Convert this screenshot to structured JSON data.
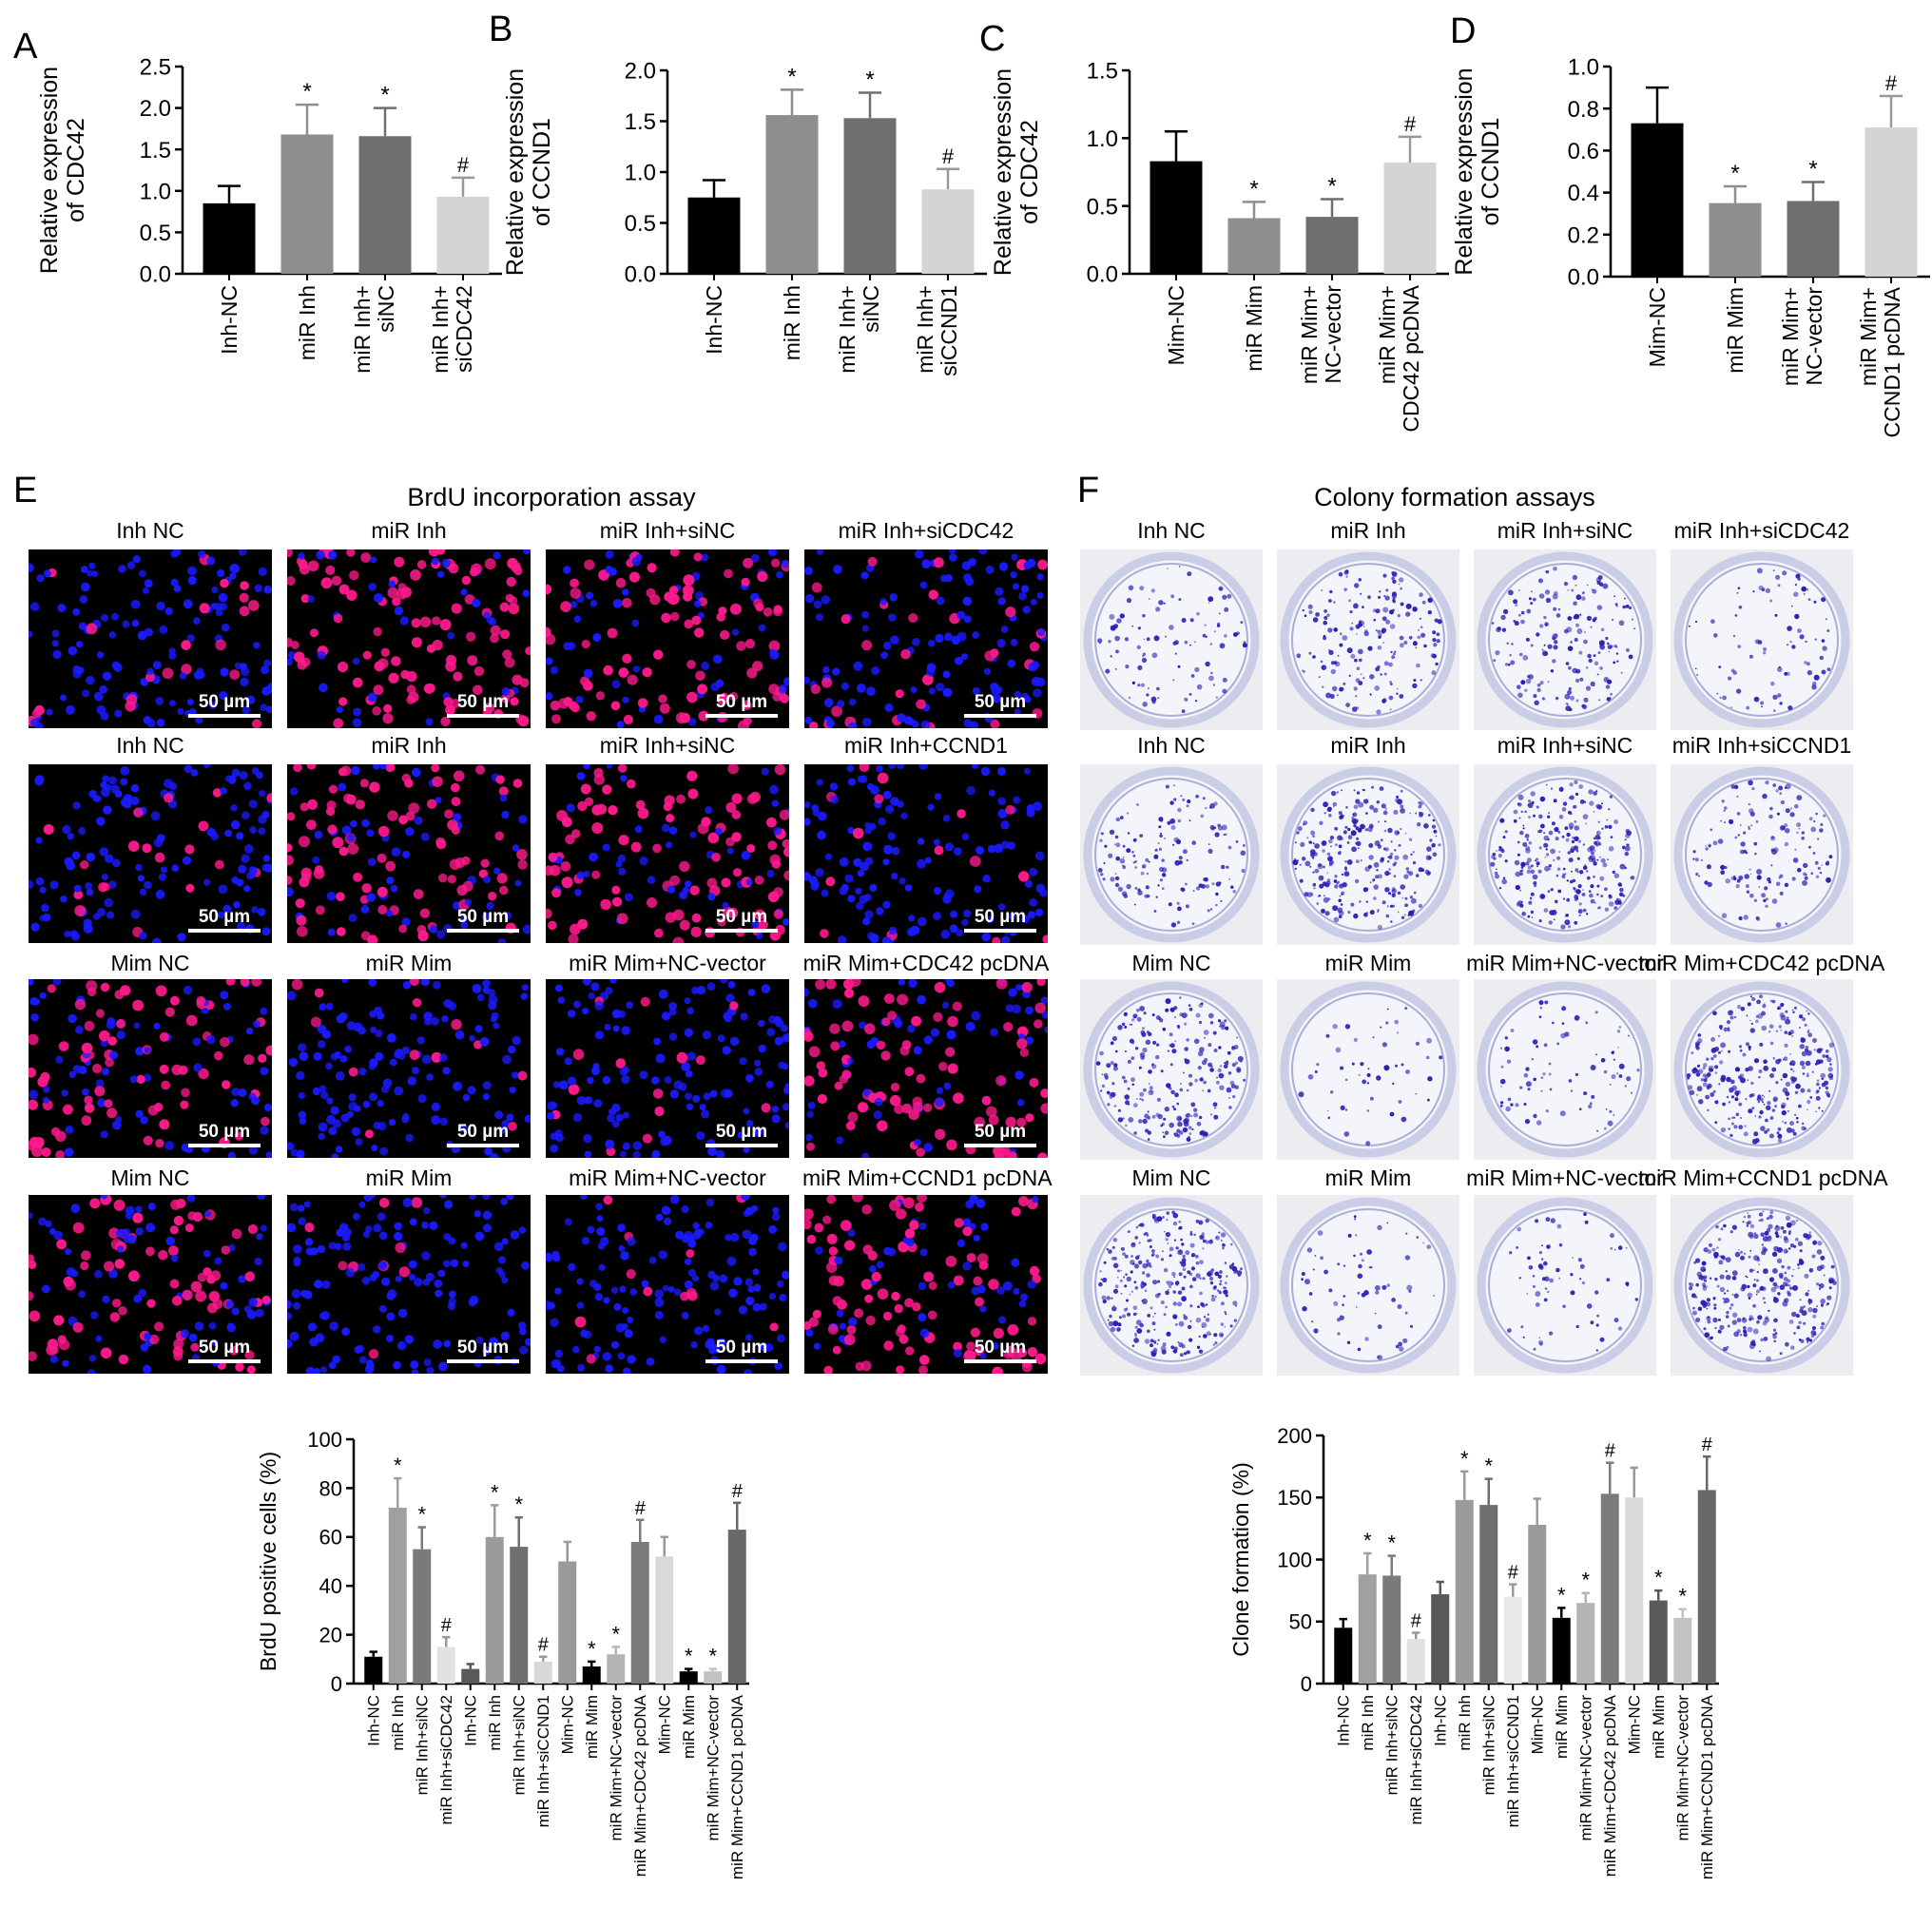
{
  "panels": [
    "A",
    "B",
    "C",
    "D",
    "E",
    "F"
  ],
  "chart_data": [
    {
      "panel": "A",
      "type": "bar",
      "ylabel": "Relative expression of CDC42",
      "ylabel_lines": [
        "Relative expression",
        "of CDC42"
      ],
      "ylim": [
        0,
        2.5
      ],
      "yticks": [
        "0.0",
        "0.5",
        "1.0",
        "1.5",
        "2.0",
        "2.5"
      ],
      "categories": [
        [
          "Inh-NC"
        ],
        [
          "miR Inh"
        ],
        [
          "miR Inh+",
          "siNC"
        ],
        [
          "miR Inh+",
          "siCDC42"
        ]
      ],
      "values": [
        0.85,
        1.68,
        1.66,
        0.93
      ],
      "errors": [
        0.21,
        0.36,
        0.34,
        0.23
      ],
      "marks": [
        "",
        "*",
        "*",
        "#"
      ],
      "colors": [
        "#000000",
        "#8e8e8e",
        "#6f6f6f",
        "#d4d4d4"
      ]
    },
    {
      "panel": "B",
      "type": "bar",
      "ylabel": "Relative expression of CCND1",
      "ylabel_lines": [
        "Relative expression",
        "of CCND1"
      ],
      "ylim": [
        0,
        2.0
      ],
      "yticks": [
        "0.0",
        "0.5",
        "1.0",
        "1.5",
        "2.0"
      ],
      "categories": [
        [
          "Inh-NC"
        ],
        [
          "miR Inh"
        ],
        [
          "miR Inh+",
          "siNC"
        ],
        [
          "miR Inh+",
          "siCCND1"
        ]
      ],
      "values": [
        0.75,
        1.56,
        1.53,
        0.83
      ],
      "errors": [
        0.17,
        0.25,
        0.25,
        0.2
      ],
      "marks": [
        "",
        "*",
        "*",
        "#"
      ],
      "colors": [
        "#000000",
        "#8e8e8e",
        "#6f6f6f",
        "#d4d4d4"
      ]
    },
    {
      "panel": "C",
      "type": "bar",
      "ylabel": "Relative expression of CDC42",
      "ylabel_lines": [
        "Relative expression",
        "of CDC42"
      ],
      "ylim": [
        0,
        1.5
      ],
      "yticks": [
        "0.0",
        "0.5",
        "1.0",
        "1.5"
      ],
      "categories": [
        [
          "Mim-NC"
        ],
        [
          "miR Mim"
        ],
        [
          "miR Mim+",
          "NC-vector"
        ],
        [
          "miR Mim+",
          "CDC42 pcDNA"
        ]
      ],
      "values": [
        0.83,
        0.41,
        0.42,
        0.82
      ],
      "errors": [
        0.22,
        0.12,
        0.13,
        0.19
      ],
      "marks": [
        "",
        "*",
        "*",
        "#"
      ],
      "colors": [
        "#000000",
        "#8e8e8e",
        "#6f6f6f",
        "#d4d4d4"
      ]
    },
    {
      "panel": "D",
      "type": "bar",
      "ylabel": "Relative expression of CCND1",
      "ylabel_lines": [
        "Relative expression",
        "of CCND1"
      ],
      "ylim": [
        0,
        1.0
      ],
      "yticks": [
        "0.0",
        "0.2",
        "0.4",
        "0.6",
        "0.8",
        "1.0"
      ],
      "categories": [
        [
          "Mim-NC"
        ],
        [
          "miR Mim"
        ],
        [
          "miR Mim+",
          "NC-vector"
        ],
        [
          "miR Mim+",
          "CCND1 pcDNA"
        ]
      ],
      "values": [
        0.73,
        0.35,
        0.36,
        0.71
      ],
      "errors": [
        0.17,
        0.08,
        0.09,
        0.15
      ],
      "marks": [
        "",
        "*",
        "*",
        "#"
      ],
      "colors": [
        "#000000",
        "#8e8e8e",
        "#6f6f6f",
        "#d4d4d4"
      ]
    },
    {
      "panel": "E",
      "type": "bar",
      "ylabel": "BrdU positive cells (%)",
      "ylabel_lines": [
        "BrdU positive cells (%)"
      ],
      "ylim": [
        0,
        100
      ],
      "yticks": [
        "0",
        "20",
        "40",
        "60",
        "80",
        "100"
      ],
      "categories": [
        [
          "Inh-NC"
        ],
        [
          "miR Inh"
        ],
        [
          "miR Inh+siNC"
        ],
        [
          "miR Inh+siCDC42"
        ],
        [
          "Inh-NC"
        ],
        [
          "miR Inh"
        ],
        [
          "miR Inh+siNC"
        ],
        [
          "miR Inh+siCCND1"
        ],
        [
          "Mim-NC"
        ],
        [
          "miR Mim"
        ],
        [
          "miR Mim+NC-vector"
        ],
        [
          "miR Mim+CDC42 pcDNA"
        ],
        [
          "Mim-NC"
        ],
        [
          "miR Mim"
        ],
        [
          "miR Mim+NC-vector"
        ],
        [
          "miR Mim+CCND1 pcDNA"
        ]
      ],
      "values": [
        11,
        72,
        55,
        15,
        6,
        60,
        56,
        9,
        50,
        7,
        12,
        58,
        52,
        5,
        5,
        63
      ],
      "errors": [
        2,
        12,
        9,
        4,
        2,
        13,
        12,
        2,
        8,
        2,
        3,
        9,
        8,
        1,
        1,
        11
      ],
      "marks": [
        "",
        "*",
        "*",
        "#",
        "",
        "*",
        "*",
        "#",
        "",
        "*",
        "*",
        "#",
        "",
        "*",
        "*",
        "#"
      ],
      "colors": [
        "#000000",
        "#a0a0a0",
        "#7a7a7a",
        "#e2e2e2",
        "#595959",
        "#9b9b9b",
        "#6f6f6f",
        "#d8d8d8",
        "#9a9a9a",
        "#000000",
        "#b4b4b4",
        "#7c7c7c",
        "#d9d9d9",
        "#000000",
        "#c2c2c2",
        "#686868"
      ]
    },
    {
      "panel": "F",
      "type": "bar",
      "ylabel": "Clone formation (%)",
      "ylabel_lines": [
        "Clone formation (%)"
      ],
      "ylim": [
        0,
        200
      ],
      "yticks": [
        "0",
        "50",
        "100",
        "150",
        "200"
      ],
      "categories": [
        [
          "Inh-NC"
        ],
        [
          "miR Inh"
        ],
        [
          "miR Inh+siNC"
        ],
        [
          "miR Inh+siCDC42"
        ],
        [
          "Inh-NC"
        ],
        [
          "miR Inh"
        ],
        [
          "miR Inh+siNC"
        ],
        [
          "miR Inh+siCCND1"
        ],
        [
          "Mim-NC"
        ],
        [
          "miR Mim"
        ],
        [
          "miR Mim+NC-vector"
        ],
        [
          "miR Mim+CDC42 pcDNA"
        ],
        [
          "Mim-NC"
        ],
        [
          "miR Mim"
        ],
        [
          "miR Mim+NC-vector"
        ],
        [
          "miR Mim+CCND1 pcDNA"
        ]
      ],
      "values": [
        45,
        88,
        87,
        36,
        72,
        148,
        144,
        70,
        128,
        53,
        65,
        153,
        150,
        67,
        53,
        156
      ],
      "errors": [
        7,
        17,
        16,
        5,
        10,
        23,
        21,
        10,
        21,
        8,
        8,
        25,
        24,
        8,
        7,
        27
      ],
      "marks": [
        "",
        "*",
        "*",
        "#",
        "",
        "*",
        "*",
        "#",
        "",
        "*",
        "*",
        "#",
        "",
        "*",
        "*",
        "#"
      ],
      "colors": [
        "#000000",
        "#a0a0a0",
        "#7a7a7a",
        "#e2e2e2",
        "#595959",
        "#9b9b9b",
        "#6f6f6f",
        "#e8e8e8",
        "#9a9a9a",
        "#000000",
        "#b4b4b4",
        "#7c7c7c",
        "#d9d9d9",
        "#595959",
        "#c2c2c2",
        "#686868"
      ]
    }
  ],
  "section_e": {
    "title": "BrdU incorporation assay",
    "scale_label": "50 µm",
    "rows": [
      [
        "Inh NC",
        "miR Inh",
        "miR Inh+siNC",
        "miR Inh+siCDC42"
      ],
      [
        "Inh NC",
        "miR Inh",
        "miR Inh+siNC",
        "miR Inh+CCND1"
      ],
      [
        "Mim NC",
        "miR Mim",
        "miR Mim+NC-vector",
        "miR Mim+CDC42 pcDNA"
      ],
      [
        "Mim NC",
        "miR Mim",
        "miR Mim+NC-vector",
        "miR Mim+CCND1 pcDNA"
      ]
    ],
    "magenta_fraction": [
      [
        0.15,
        0.75,
        0.6,
        0.18
      ],
      [
        0.12,
        0.6,
        0.6,
        0.08
      ],
      [
        0.55,
        0.08,
        0.1,
        0.62
      ],
      [
        0.55,
        0.07,
        0.12,
        0.65
      ]
    ],
    "colors": {
      "nuclei": "#1a1aff",
      "brdu": "#ff1a8c",
      "background": "#000000"
    }
  },
  "section_f": {
    "title": "Colony formation assays",
    "rows": [
      [
        "Inh NC",
        "miR Inh",
        "miR Inh+siNC",
        "miR Inh+siCDC42"
      ],
      [
        "Inh NC",
        "miR Inh",
        "miR Inh+siNC",
        "miR Inh+siCCND1"
      ],
      [
        "Mim NC",
        "miR Mim",
        "miR Mim+NC-vector",
        "miR Mim+CDC42 pcDNA"
      ],
      [
        "Mim NC",
        "miR Mim",
        "miR Mim+NC-vector",
        "miR Mim+CCND1 pcDNA"
      ]
    ],
    "colony_level": [
      [
        0.25,
        0.5,
        0.5,
        0.2
      ],
      [
        0.4,
        0.85,
        0.85,
        0.4
      ],
      [
        0.7,
        0.1,
        0.2,
        0.9
      ],
      [
        0.9,
        0.15,
        0.15,
        0.95
      ]
    ],
    "colors": {
      "colony": "#2a1fb5",
      "dish": "#c9cde6"
    }
  }
}
